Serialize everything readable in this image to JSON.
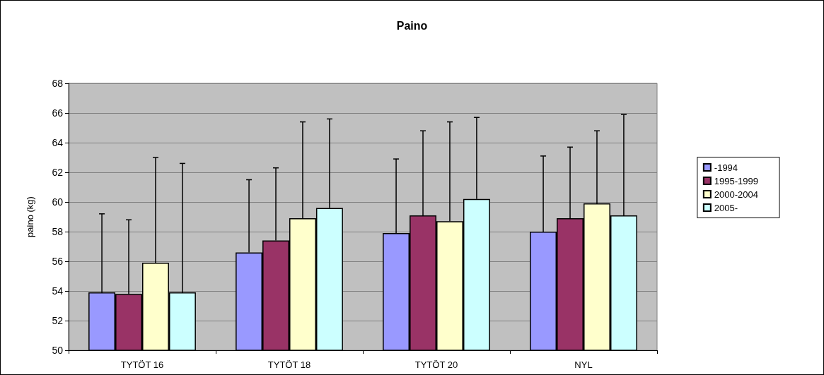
{
  "chart_data": {
    "type": "bar",
    "title": "Paino",
    "ylabel": "paino (kg)",
    "categories": [
      "TYTÖT 16",
      "TYTÖT 18",
      "TYTÖT 20",
      "NYL"
    ],
    "series": [
      {
        "name": "-1994",
        "color": "#9999ff",
        "values": [
          53.9,
          56.6,
          57.9,
          58.0
        ],
        "errors": [
          [
            53.9,
            59.2
          ],
          [
            56.6,
            61.5
          ],
          [
            57.9,
            62.9
          ],
          [
            58.0,
            63.1
          ]
        ]
      },
      {
        "name": "1995-1999",
        "color": "#993366",
        "values": [
          53.8,
          57.4,
          59.1,
          58.9
        ],
        "errors": [
          [
            53.8,
            58.8
          ],
          [
            57.4,
            62.3
          ],
          [
            59.1,
            64.8
          ],
          [
            58.9,
            63.7
          ]
        ]
      },
      {
        "name": "2000-2004",
        "color": "#ffffcc",
        "values": [
          55.9,
          58.9,
          58.7,
          59.9
        ],
        "errors": [
          [
            55.9,
            63.0
          ],
          [
            58.9,
            65.4
          ],
          [
            58.7,
            65.4
          ],
          [
            59.9,
            64.8
          ]
        ]
      },
      {
        "name": "2005-",
        "color": "#ccffff",
        "values": [
          53.9,
          59.6,
          60.2,
          59.1
        ],
        "errors": [
          [
            53.9,
            62.6
          ],
          [
            59.6,
            65.6
          ],
          [
            60.2,
            65.7
          ],
          [
            59.1,
            65.9
          ]
        ]
      }
    ],
    "ylim": [
      50,
      68
    ],
    "yticks": [
      50,
      52,
      54,
      56,
      58,
      60,
      62,
      64,
      66,
      68
    ],
    "grid": "y",
    "legend": "right"
  }
}
